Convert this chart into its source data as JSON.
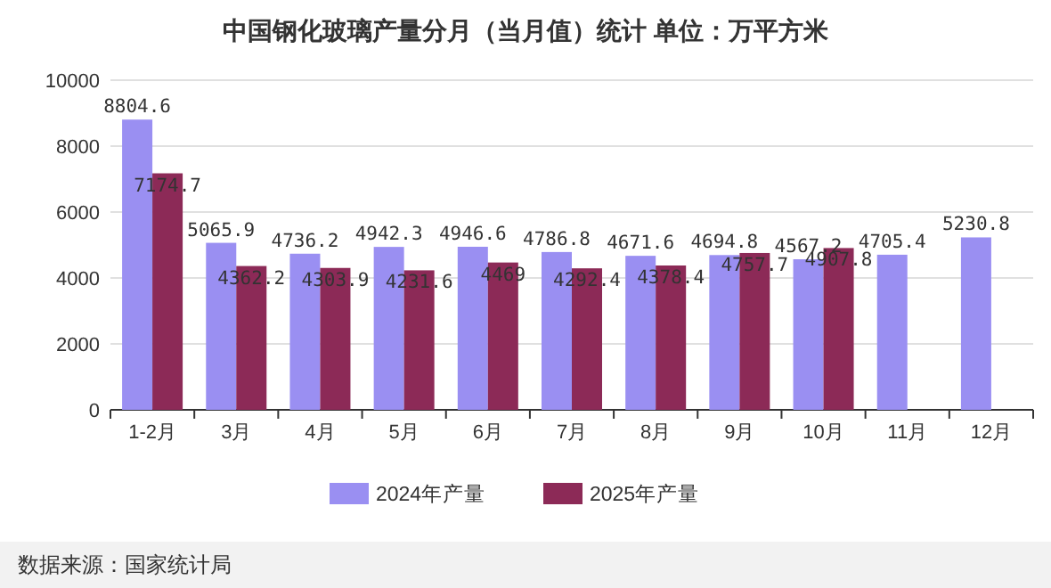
{
  "chart_data": {
    "type": "bar",
    "title": "中国钢化玻璃产量分月（当月值）统计 单位：万平方米",
    "categories": [
      "1-2月",
      "3月",
      "4月",
      "5月",
      "6月",
      "7月",
      "8月",
      "9月",
      "10月",
      "11月",
      "12月"
    ],
    "series": [
      {
        "name": "2024年产量",
        "color": "#9a8ff2",
        "values": [
          8804.6,
          5065.9,
          4736.2,
          4942.3,
          4946.6,
          4786.8,
          4671.6,
          4694.8,
          4567.2,
          4705.4,
          5230.8
        ]
      },
      {
        "name": "2025年产量",
        "color": "#8c2a57",
        "values": [
          7174.7,
          4362.2,
          4303.9,
          4231.6,
          4469,
          4292.4,
          4378.4,
          4757.7,
          4907.8,
          null,
          null
        ]
      }
    ],
    "ylim": [
      0,
      10000
    ],
    "yticks": [
      0,
      2000,
      4000,
      6000,
      8000,
      10000
    ],
    "grid": "y",
    "legend": "bottom",
    "data_labels": true,
    "annotations": [
      "数据来源：国家统计局"
    ]
  }
}
